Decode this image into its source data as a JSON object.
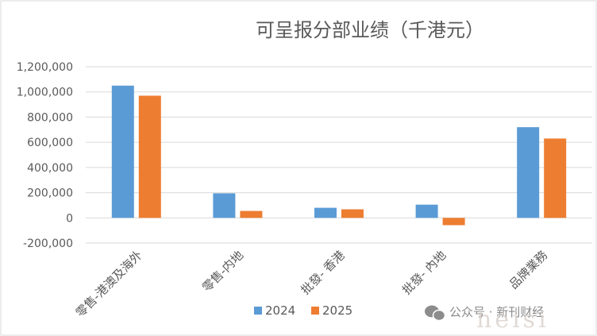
{
  "chart_data": {
    "type": "bar",
    "title": "可呈报分部业绩（千港元）",
    "categories": [
      "零售-港澳及海外",
      "零售-内地",
      "批發- 香港",
      "批發- 內地",
      "品牌業務"
    ],
    "series": [
      {
        "name": "2024",
        "values": [
          1050000,
          195000,
          80000,
          105000,
          720000
        ],
        "color": "#5B9BD5"
      },
      {
        "name": "2025",
        "values": [
          970000,
          55000,
          68000,
          -58000,
          630000
        ],
        "color": "#ED7D31"
      }
    ],
    "ylim": [
      -200000,
      1200000
    ],
    "yticks": [
      -200000,
      0,
      200000,
      400000,
      600000,
      800000,
      1000000,
      1200000
    ],
    "ytick_labels": [
      "-200,000",
      "0",
      "200,000",
      "400,000",
      "600,000",
      "800,000",
      "1,000,000",
      "1,200,000"
    ],
    "xlabel": "",
    "ylabel": "",
    "grid": true,
    "legend_position": "bottom"
  },
  "watermark": {
    "source": "公众号 · 新刊财经",
    "overlay": "heisi"
  }
}
